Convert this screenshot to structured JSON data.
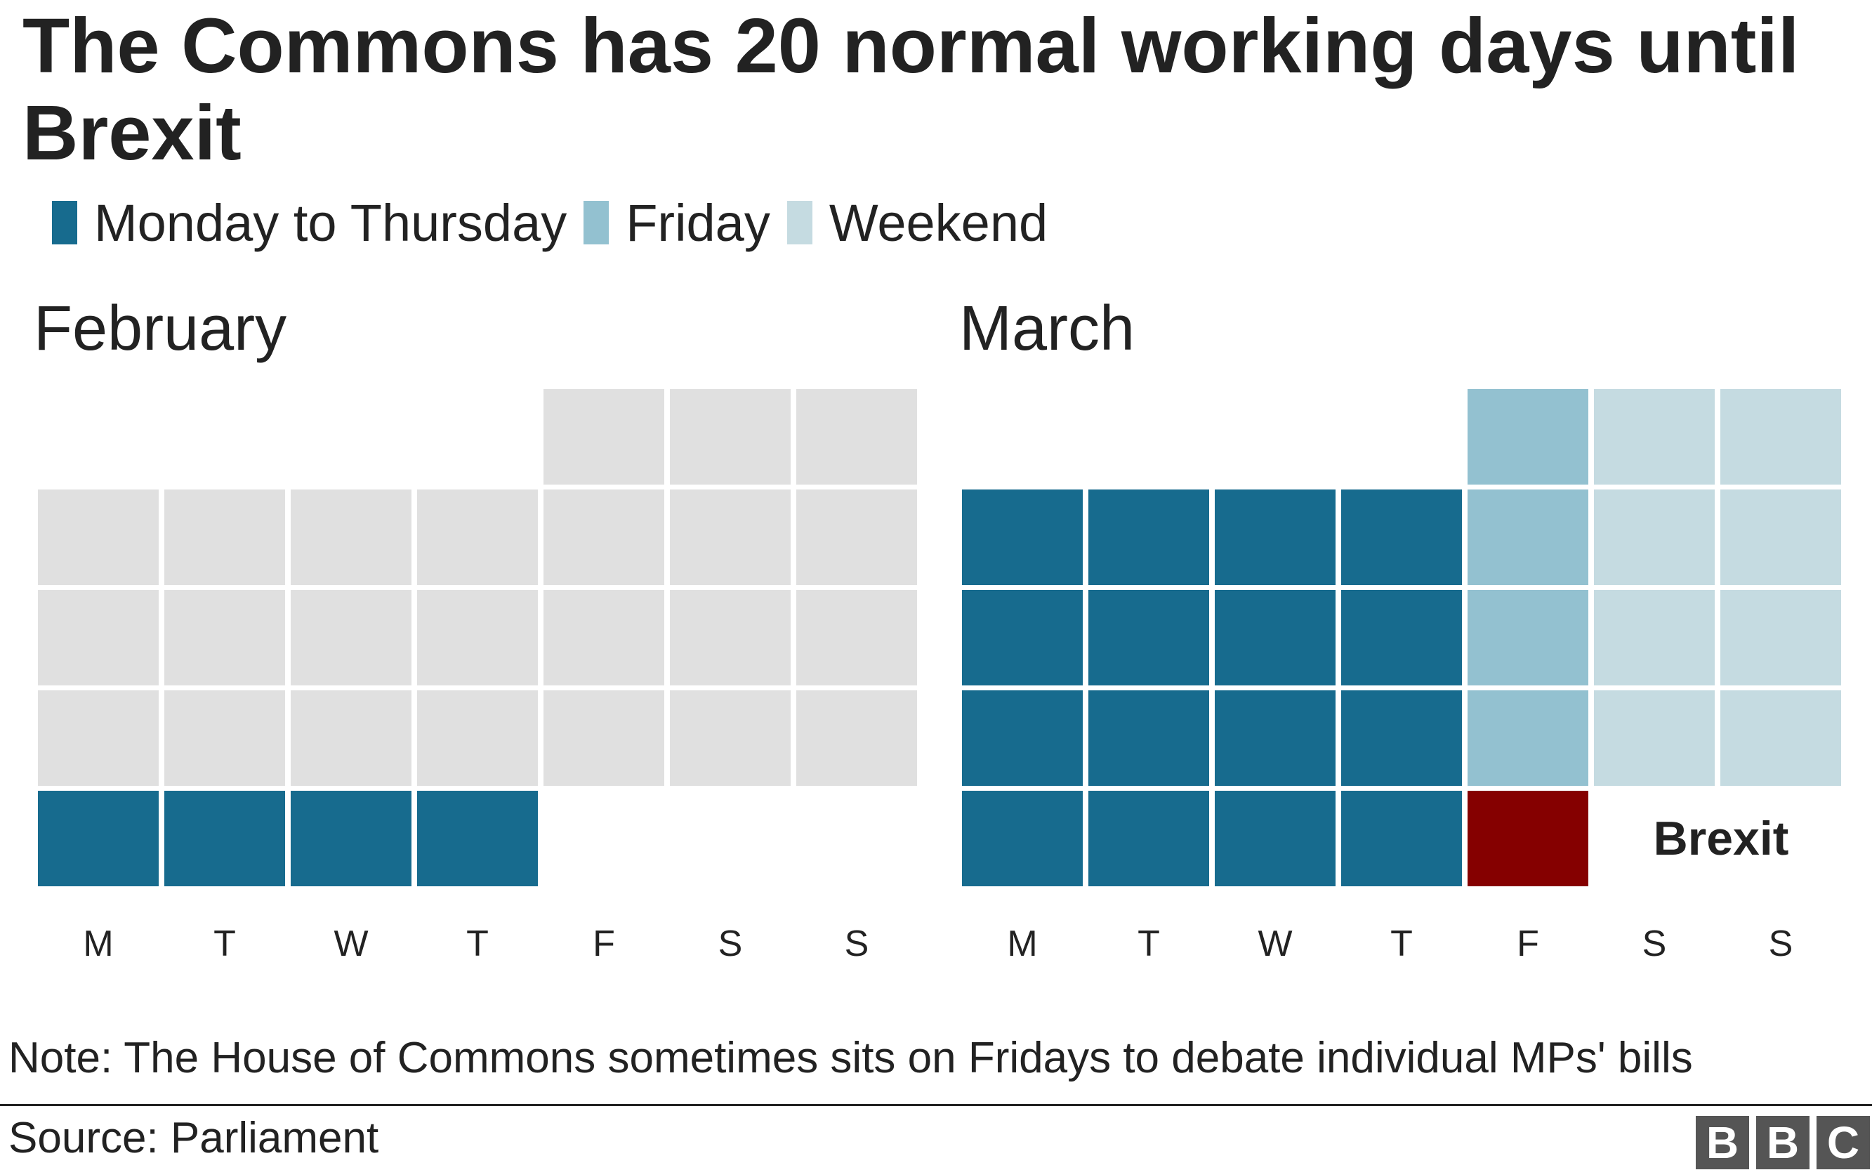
{
  "chart_data": {
    "type": "heatmap",
    "title": "The Commons has 20 normal working days until Brexit",
    "legend": [
      {
        "label": "Monday to Thursday",
        "color": "#176b8e"
      },
      {
        "label": "Friday",
        "color": "#93c1d0"
      },
      {
        "label": "Weekend",
        "color": "#c5dbe1"
      }
    ],
    "day_labels": [
      "M",
      "T",
      "W",
      "T",
      "F",
      "S",
      "S"
    ],
    "colors": {
      "inactive": "#e0e0e0",
      "brexit": "#850000"
    },
    "months": [
      {
        "name": "February",
        "first_weekday": 4,
        "days": 28,
        "active_from_day": 25,
        "brexit_day": null
      },
      {
        "name": "March",
        "first_weekday": 4,
        "days": 29,
        "active_from_day": 1,
        "brexit_day": 29
      }
    ],
    "annotation": "Brexit"
  },
  "note": "Note: The House of Commons sometimes sits on Fridays to debate individual MPs' bills",
  "source": "Source: Parliament",
  "logo": {
    "letters": [
      "B",
      "B",
      "C"
    ]
  }
}
